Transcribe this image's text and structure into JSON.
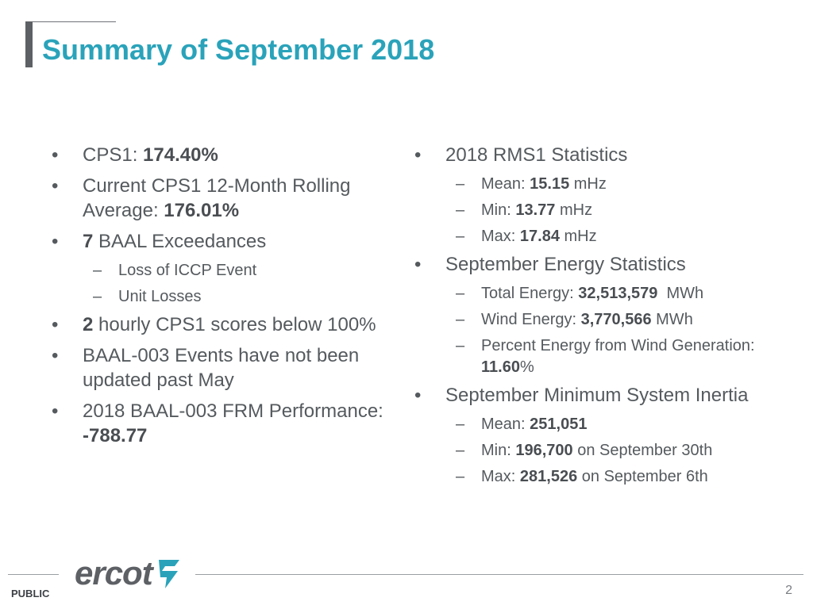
{
  "title": "Summary of September 2018",
  "left": {
    "cps1_label": "CPS1: ",
    "cps1_value": "174.40%",
    "rolling_label": "Current CPS1 12-Month Rolling Average: ",
    "rolling_value": "176.01%",
    "baal_count": "7",
    "baal_label": " BAAL Exceedances",
    "baal_sub1": "Loss of ICCP Event",
    "baal_sub2": "Unit Losses",
    "hourly_count": "2",
    "hourly_label": " hourly CPS1 scores below 100%",
    "baal003_events": "BAAL-003 Events have not been updated past May",
    "frm_label": "2018 BAAL-003 FRM Performance: ",
    "frm_value": "-788.77"
  },
  "right": {
    "rms1_heading": "2018 RMS1 Statistics",
    "mean_label": "Mean: ",
    "mean_value": "15.15",
    "mean_unit": " mHz",
    "min_label": "Min: ",
    "min_value": "13.77",
    "min_unit": " mHz",
    "max_label": "Max: ",
    "max_value": "17.84",
    "max_unit": " mHz",
    "energy_heading": "September Energy Statistics",
    "total_label": "Total Energy: ",
    "total_value": "32,513,579",
    "total_unit": "  MWh",
    "wind_label": "Wind Energy: ",
    "wind_value": "3,770,566",
    "wind_unit": " MWh",
    "pct_label": "Percent Energy from Wind Generation: ",
    "pct_value": "11.60",
    "pct_unit": "%",
    "inertia_heading": "September Minimum System Inertia",
    "in_mean_label": "Mean: ",
    "in_mean_value": "251,051",
    "in_min_label": "Min: ",
    "in_min_value": "196,700",
    "in_min_suffix": " on September 30th",
    "in_max_label": "Max: ",
    "in_max_value": "281,526",
    "in_max_suffix": " on September 6th"
  },
  "footer": {
    "logo_text": "ercot",
    "public_label": "PUBLIC",
    "page_number": "2"
  },
  "colors": {
    "title": "#2aa3ba",
    "logo_accent": "#2aa3ba",
    "text": "#555a5e"
  },
  "bullet_glyph": "•",
  "dash_glyph": "–"
}
